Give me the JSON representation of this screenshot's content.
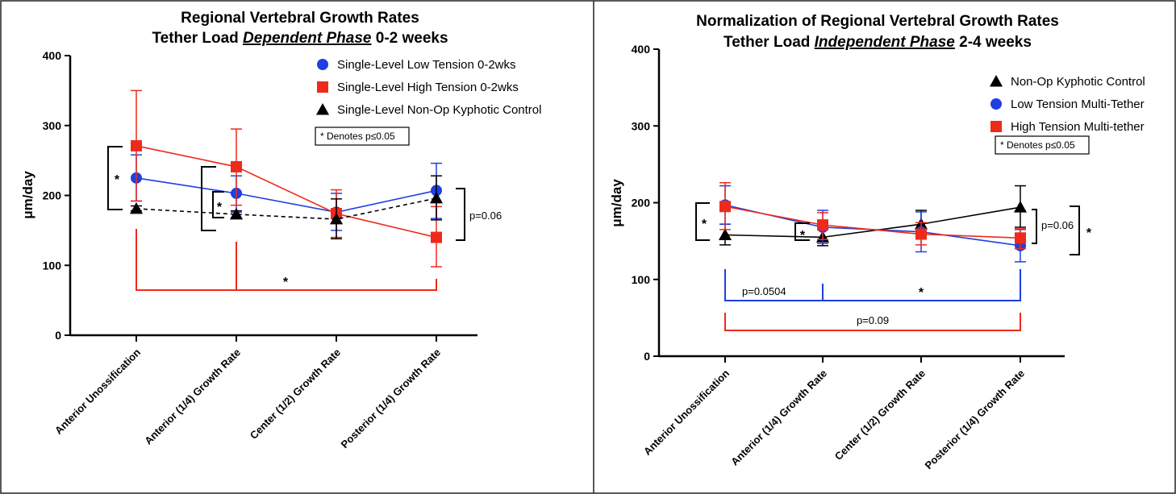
{
  "chart_data": [
    {
      "type": "line",
      "title_line1": "Regional Vertebral Growth Rates",
      "title_line2_prefix": "Tether Load ",
      "title_line2_emph": "Dependent Phase",
      "title_line2_suffix": " 0-2 weeks",
      "ylabel": "μm/day",
      "ylim": [
        0,
        400
      ],
      "yticks": [
        0,
        100,
        200,
        300,
        400
      ],
      "categories": [
        "Anterior Unossification",
        "Anterior (1/4) Growth Rate",
        "Center (1/2) Growth Rate",
        "Posterior (1/4) Growth Rate"
      ],
      "legend_position": "top-right",
      "note": "* Denotes p≤0.05",
      "series": [
        {
          "name": "Single-Level Low Tension 0-2wks",
          "color": "#1f3fe0",
          "marker": "circle",
          "dash": false,
          "values": [
            225,
            203,
            176,
            207
          ],
          "err_low": [
            192,
            176,
            150,
            167
          ],
          "err_high": [
            258,
            228,
            203,
            246
          ]
        },
        {
          "name": "Single-Level High Tension 0-2wks",
          "color": "#ee2a1b",
          "marker": "square",
          "dash": false,
          "values": [
            271,
            241,
            174,
            140
          ],
          "err_low": [
            192,
            186,
            140,
            98
          ],
          "err_high": [
            350,
            295,
            208,
            184
          ]
        },
        {
          "name": "Single-Level Non-Op Kyphotic Control",
          "color": "#000000",
          "marker": "triangle",
          "dash": true,
          "values": [
            181,
            173,
            166,
            196
          ],
          "err_low": [
            178,
            168,
            138,
            165
          ],
          "err_high": [
            185,
            178,
            195,
            228
          ]
        }
      ],
      "annotations": {
        "star": "*",
        "p_right": "p=0.06"
      }
    },
    {
      "type": "line",
      "title_line1": "Normalization of Regional Vertebral Growth Rates",
      "title_line2_prefix": "Tether Load ",
      "title_line2_emph": "Independent Phase",
      "title_line2_suffix": " 2-4 weeks",
      "ylabel": "μm/day",
      "ylim": [
        0,
        400
      ],
      "yticks": [
        0,
        100,
        200,
        300,
        400
      ],
      "categories": [
        "Anterior Unossification",
        "Anterior (1/4) Growth Rate",
        "Center (1/2) Growth Rate",
        "Posterior (1/4) Growth Rate"
      ],
      "legend_position": "top-right",
      "note": "* Denotes p≤0.05",
      "series": [
        {
          "name": "Non-Op Kyphotic Control",
          "color": "#000000",
          "marker": "triangle",
          "dash": false,
          "values": [
            158,
            155,
            172,
            194
          ],
          "err_low": [
            145,
            144,
            155,
            168
          ],
          "err_high": [
            172,
            165,
            190,
            222
          ]
        },
        {
          "name": "Low Tension Multi-Tether",
          "color": "#1f3fe0",
          "marker": "circle",
          "dash": false,
          "values": [
            197,
            168,
            162,
            144
          ],
          "err_low": [
            172,
            147,
            136,
            123
          ],
          "err_high": [
            222,
            190,
            188,
            165
          ]
        },
        {
          "name": "High Tension Multi-tether",
          "color": "#ee2a1b",
          "marker": "square",
          "dash": false,
          "values": [
            195,
            171,
            159,
            154
          ],
          "err_low": [
            165,
            152,
            145,
            140
          ],
          "err_high": [
            226,
            187,
            174,
            166
          ]
        }
      ],
      "annotations": {
        "star": "*",
        "p_right": "p=0.06",
        "p_blue": "p=0.0504",
        "p_red": "p=0.09"
      }
    }
  ]
}
